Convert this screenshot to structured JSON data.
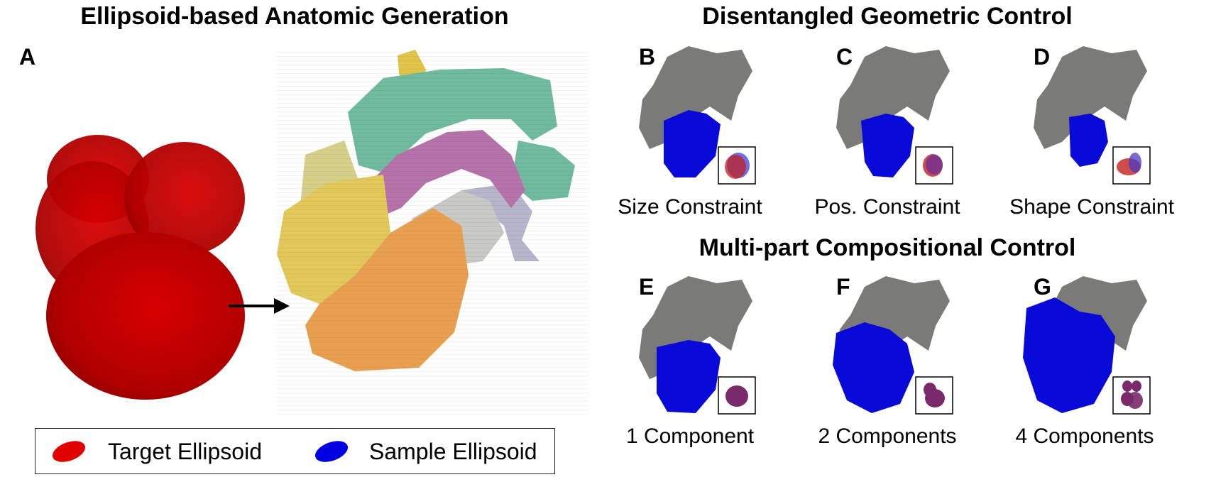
{
  "titles": {
    "left": "Ellipsoid-based Anatomic Generation",
    "top_right": "Disentangled Geometric Control",
    "bottom_right": "Multi-part Compositional Control"
  },
  "panels": {
    "A": {
      "letter": "A"
    },
    "B": {
      "letter": "B",
      "caption": "Size Constraint"
    },
    "C": {
      "letter": "C",
      "caption": "Pos. Constraint"
    },
    "D": {
      "letter": "D",
      "caption": "Shape Constraint"
    },
    "E": {
      "letter": "E",
      "caption": "1 Component"
    },
    "F": {
      "letter": "F",
      "caption": "2 Components"
    },
    "G": {
      "letter": "G",
      "caption": "4 Components"
    }
  },
  "legend": {
    "target_label": "Target Ellipsoid",
    "sample_label": "Sample Ellipsoid"
  },
  "colors": {
    "target_red": "#cc0000",
    "sample_blue": "#0a0ad8",
    "gray_heart": "#7a7a78",
    "lv_orange": "#e8a050",
    "la_yellow": "#e2c85a",
    "aorta_teal": "#72bca2",
    "pa_purple": "#b673aa",
    "overlap_purple": "#7a2a6a"
  }
}
